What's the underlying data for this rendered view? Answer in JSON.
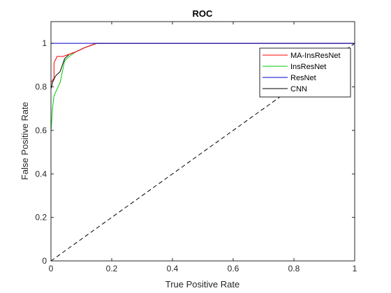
{
  "chart_data": {
    "type": "line",
    "title": "ROC",
    "xlabel": "True Positive Rate",
    "ylabel": "False Positive Rate",
    "xlim": [
      0,
      1
    ],
    "ylim": [
      0,
      1.1
    ],
    "xticks": [
      "0",
      "0.2",
      "0.4",
      "0.6",
      "0.8",
      "1"
    ],
    "yticks": [
      "0",
      "0.2",
      "0.4",
      "0.6",
      "0.8",
      "1"
    ],
    "grid": false,
    "legend_position": "top-right",
    "series": [
      {
        "name": "MA-InsResNet",
        "color": "#ff0000",
        "x": [
          0,
          0,
          0.01,
          0.01,
          0.02,
          0.04,
          0.06,
          0.08,
          0.11,
          0.15,
          0.2,
          1.0
        ],
        "y": [
          0,
          0.82,
          0.84,
          0.91,
          0.94,
          0.94,
          0.95,
          0.96,
          0.98,
          1.0,
          1.0,
          1.0
        ]
      },
      {
        "name": "InsResNet",
        "color": "#00cc00",
        "x": [
          0,
          0,
          0.005,
          0.01,
          0.02,
          0.03,
          0.045,
          0.06,
          0.08,
          0.11,
          0.15,
          0.2,
          1.0
        ],
        "y": [
          0,
          0.59,
          0.7,
          0.76,
          0.79,
          0.82,
          0.92,
          0.94,
          0.96,
          0.98,
          1.0,
          1.0,
          1.0
        ]
      },
      {
        "name": "ResNet",
        "color": "#0000cc",
        "x": [
          0,
          0,
          1.0
        ],
        "y": [
          0,
          1.0,
          1.0
        ]
      },
      {
        "name": "CNN",
        "color": "#000000",
        "x": [
          0,
          0,
          0.005,
          0.015,
          0.03,
          0.045,
          0.06,
          0.08,
          0.11,
          0.15,
          0.2,
          1.0
        ],
        "y": [
          0,
          0.79,
          0.82,
          0.85,
          0.87,
          0.93,
          0.95,
          0.96,
          0.98,
          1.0,
          1.0,
          1.0
        ]
      }
    ],
    "reference_line": {
      "x": [
        0,
        1
      ],
      "y": [
        0,
        1
      ],
      "style": "dashed",
      "color": "#000000"
    }
  }
}
